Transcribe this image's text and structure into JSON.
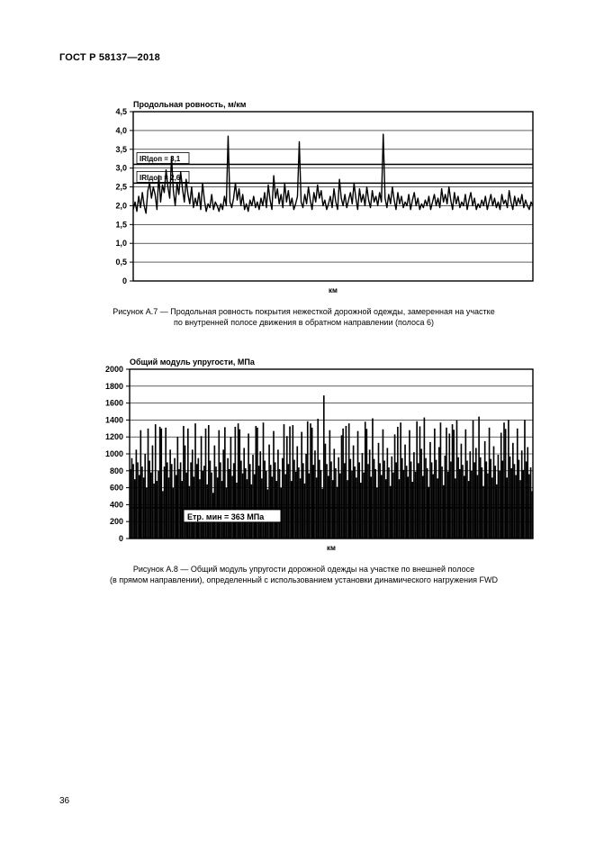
{
  "doc_code": "ГОСТ Р 58137—2018",
  "page_number": "36",
  "chart_a7": {
    "type": "line",
    "title": "Продольная ровность, м/км",
    "title_fontsize": 9,
    "title_weight": 700,
    "xlabel": "км",
    "label_fontsize": 8,
    "ylim": [
      0,
      4.5
    ],
    "yticks": [
      0,
      0.5,
      1.0,
      1.5,
      2.0,
      2.5,
      3.0,
      3.5,
      4.0,
      4.5
    ],
    "ytick_labels": [
      "0",
      "0,5",
      "1,0",
      "1,5",
      "2,0",
      "2,5",
      "3,0",
      "3,5",
      "4,0",
      "4,5"
    ],
    "xlim": [
      0,
      220
    ],
    "threshold_lines": [
      {
        "label": "IRIдоп = 3,1",
        "y": 3.1
      },
      {
        "label": "IRIдоп = 2,6",
        "y": 2.6
      }
    ],
    "background_color": "#ffffff",
    "grid_color": "#000000",
    "grid_width": 0.6,
    "axis_color": "#000000",
    "line_color": "#000000",
    "line_width": 1.4,
    "threshold_line_width": 1.6,
    "values": [
      1.9,
      2.1,
      1.85,
      2.25,
      1.95,
      2.35,
      2.0,
      1.8,
      2.4,
      2.6,
      2.2,
      2.5,
      2.3,
      1.9,
      2.8,
      2.1,
      2.55,
      2.35,
      2.95,
      2.5,
      2.2,
      3.3,
      2.4,
      2.0,
      2.6,
      2.3,
      2.9,
      2.45,
      2.1,
      2.7,
      2.3,
      2.05,
      2.5,
      1.95,
      2.2,
      2.0,
      2.35,
      1.9,
      2.6,
      2.15,
      1.85,
      2.05,
      1.95,
      2.3,
      1.9,
      2.1,
      2.0,
      1.85,
      2.05,
      1.9,
      2.25,
      2.0,
      3.85,
      2.1,
      1.95,
      2.2,
      2.6,
      2.15,
      2.45,
      2.0,
      2.3,
      1.9,
      2.05,
      1.85,
      2.15,
      2.0,
      2.25,
      1.95,
      2.1,
      1.9,
      2.2,
      2.0,
      2.35,
      1.95,
      2.55,
      2.15,
      1.9,
      2.8,
      2.2,
      2.45,
      2.05,
      2.3,
      1.95,
      2.6,
      2.1,
      2.4,
      2.0,
      2.2,
      1.9,
      2.05,
      2.25,
      3.7,
      2.1,
      1.95,
      2.3,
      2.05,
      2.5,
      2.15,
      1.9,
      2.35,
      2.1,
      2.55,
      2.2,
      2.4,
      2.0,
      2.15,
      1.9,
      2.05,
      2.25,
      1.95,
      2.45,
      2.1,
      1.9,
      2.7,
      2.2,
      2.0,
      2.3,
      1.95,
      2.15,
      2.35,
      2.05,
      2.6,
      2.2,
      1.9,
      2.45,
      2.1,
      2.3,
      2.0,
      2.5,
      2.15,
      1.95,
      2.4,
      2.1,
      2.25,
      2.0,
      2.35,
      2.1,
      3.9,
      2.2,
      1.95,
      2.3,
      2.05,
      2.5,
      2.15,
      1.9,
      2.35,
      2.05,
      2.25,
      1.95,
      2.1,
      2.0,
      2.3,
      1.9,
      2.15,
      2.35,
      2.0,
      2.2,
      1.9,
      2.05,
      1.95,
      2.15,
      2.0,
      2.25,
      1.9,
      2.1,
      2.3,
      2.0,
      2.2,
      1.95,
      2.45,
      2.1,
      2.3,
      2.05,
      2.5,
      2.15,
      1.9,
      2.35,
      2.05,
      2.25,
      1.95,
      2.1,
      2.0,
      2.3,
      1.9,
      2.15,
      2.35,
      2.0,
      2.2,
      1.9,
      2.05,
      1.95,
      2.15,
      2.0,
      2.25,
      1.9,
      2.1,
      2.3,
      2.0,
      2.2,
      1.95,
      2.1,
      1.9,
      2.3,
      2.05,
      2.15,
      1.95,
      2.4,
      2.1,
      1.9,
      2.25,
      2.0,
      2.2,
      2.05,
      2.3,
      1.95,
      2.15,
      2.0,
      1.9,
      2.1,
      2.0
    ]
  },
  "caption_a7_line1": "Рисунок А.7 — Продольная ровность покрытия нежесткой дорожной одежды, замеренная на участке",
  "caption_a7_line2": "по внутренней полосе движения в обратном направлении (полоса 6)",
  "chart_a8": {
    "type": "bar",
    "title": "Общий модуль упругости, МПа",
    "title_fontsize": 9,
    "title_weight": 700,
    "xlabel": "км",
    "label_fontsize": 8,
    "ylim": [
      0,
      2000
    ],
    "ytick_step": 200,
    "yticks": [
      0,
      200,
      400,
      600,
      800,
      1000,
      1200,
      1400,
      1600,
      1800,
      2000
    ],
    "xlim": [
      0,
      220
    ],
    "threshold_line": {
      "label": "Етр. мин = 363 МПа",
      "y": 363
    },
    "background_color": "#ffffff",
    "grid_color": "#000000",
    "grid_width": 0.6,
    "axis_color": "#000000",
    "bar_color": "#000000",
    "threshold_line_width": 1.6,
    "bar_width": 1.0,
    "values": [
      820,
      950,
      880,
      700,
      1050,
      900,
      750,
      1280,
      850,
      720,
      1000,
      600,
      1300,
      920,
      780,
      1100,
      650,
      1350,
      680,
      800,
      1320,
      1300,
      560,
      850,
      1310,
      900,
      720,
      1050,
      880,
      600,
      950,
      750,
      1200,
      820,
      900,
      680,
      1330,
      1100,
      780,
      1300,
      620,
      900,
      1050,
      730,
      1360,
      880,
      950,
      700,
      1210,
      800,
      860,
      1300,
      640,
      1340,
      920,
      780,
      540,
      1100,
      850,
      720,
      1280,
      900,
      680,
      1050,
      1315,
      600,
      950,
      820,
      1200,
      740,
      890,
      1320,
      660,
      1360,
      1290,
      920,
      770,
      1070,
      830,
      700,
      1240,
      880,
      640,
      990,
      760,
      1330,
      1310,
      860,
      1030,
      710,
      1370,
      920,
      800,
      580,
      1110,
      870,
      730,
      1270,
      900,
      680,
      1050,
      820,
      600,
      950,
      1350,
      760,
      1210,
      880,
      1325,
      680,
      1340,
      930,
      790,
      1090,
      840,
      710,
      1260,
      890,
      650,
      1000,
      1385,
      770,
      1360,
      1310,
      870,
      1040,
      720,
      1415,
      930,
      810,
      590,
      1690,
      1120,
      880,
      740,
      1280,
      910,
      690,
      1060,
      830,
      610,
      960,
      770,
      1220,
      1300,
      890,
      1330,
      690,
      1360,
      940,
      800,
      1100,
      850,
      720,
      1270,
      900,
      660,
      1010,
      780,
      1380,
      1295,
      880,
      1050,
      730,
      1420,
      940,
      820,
      600,
      1130,
      890,
      750,
      1290,
      920,
      700,
      1070,
      840,
      620,
      970,
      780,
      1230,
      900,
      1320,
      700,
      1370,
      950,
      810,
      1110,
      860,
      730,
      1280,
      910,
      670,
      1020,
      790,
      1385,
      890,
      1325,
      1060,
      740,
      1430,
      950,
      830,
      610,
      1140,
      900,
      760,
      1300,
      930,
      710,
      1080,
      1370,
      850,
      630,
      980,
      1310,
      790,
      1240,
      910,
      1350,
      1285,
      710,
      1395,
      960,
      820,
      1120,
      870,
      740,
      1290,
      920,
      680,
      1030,
      800,
      1395,
      900,
      1070,
      750,
      1440,
      960,
      840,
      620,
      1150,
      910,
      770,
      1310,
      940,
      720,
      1090,
      860,
      640,
      990,
      800,
      1250,
      920,
      1370,
      1295,
      720,
      1400,
      970,
      830,
      1130,
      880,
      750,
      1300,
      930,
      690,
      1040,
      810,
      1400,
      910,
      1080,
      760,
      840,
      560
    ]
  },
  "caption_a8_line1": "Рисунок А.8 — Общий модуль упругости дорожной одежды на участке по внешней полосе",
  "caption_a8_line2": "(в прямом направлении), определенный с использованием установки динамического нагружения FWD"
}
